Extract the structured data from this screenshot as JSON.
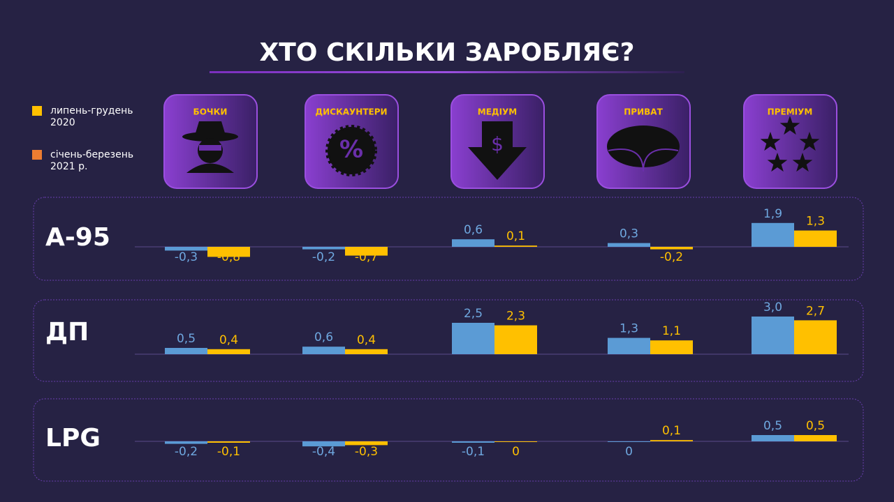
{
  "title": "ХТО СКІЛЬКИ ЗАРОБЛЯЄ?",
  "legend": [
    {
      "label": "липень-грудень 2020",
      "color": "#ffc000"
    },
    {
      "label": "січень-березень 2021 р.",
      "color": "#ed7d31"
    }
  ],
  "categories": [
    "БОЧКИ",
    "ДИСКАУНТЕРИ",
    "МЕДІУМ",
    "ПРИВАТ",
    "ПРЕМІУМ"
  ],
  "chart_data": [
    {
      "type": "bar",
      "title": "А-95",
      "ylim": [
        -2,
        3
      ],
      "series": [
        {
          "color": "#5b9bd5",
          "values": [
            -0.3,
            -0.2,
            0.6,
            0.3,
            1.9
          ],
          "value_labels": [
            "-0,3",
            "-0,2",
            "0,6",
            "0,3",
            "1,9"
          ]
        },
        {
          "color": "#ffc000",
          "values": [
            -0.8,
            -0.7,
            0.1,
            -0.2,
            1.3
          ],
          "value_labels": [
            "-0,8",
            "-0,7",
            "0,1",
            "-0,2",
            "1,3"
          ]
        }
      ]
    },
    {
      "type": "bar",
      "title": "ДП",
      "ylim": [
        -1,
        3.5
      ],
      "series": [
        {
          "color": "#5b9bd5",
          "values": [
            0.5,
            0.6,
            2.5,
            1.3,
            3.0
          ],
          "value_labels": [
            "0,5",
            "0,6",
            "2,5",
            "1,3",
            "3,0"
          ]
        },
        {
          "color": "#ffc000",
          "values": [
            0.4,
            0.4,
            2.3,
            1.1,
            2.7
          ],
          "value_labels": [
            "0,4",
            "0,4",
            "2,3",
            "1,1",
            "2,7"
          ]
        }
      ]
    },
    {
      "type": "bar",
      "title": "LPG",
      "ylim": [
        -2,
        2.5
      ],
      "series": [
        {
          "color": "#5b9bd5",
          "values": [
            -0.2,
            -0.4,
            -0.1,
            0,
            0.5
          ],
          "value_labels": [
            "-0,2",
            "-0,4",
            "-0,1",
            "0",
            "0,5"
          ]
        },
        {
          "color": "#ffc000",
          "values": [
            -0.1,
            -0.3,
            0,
            0.1,
            0.5
          ],
          "value_labels": [
            "-0,1",
            "-0,3",
            "0",
            "0,1",
            "0,5"
          ]
        }
      ]
    }
  ]
}
